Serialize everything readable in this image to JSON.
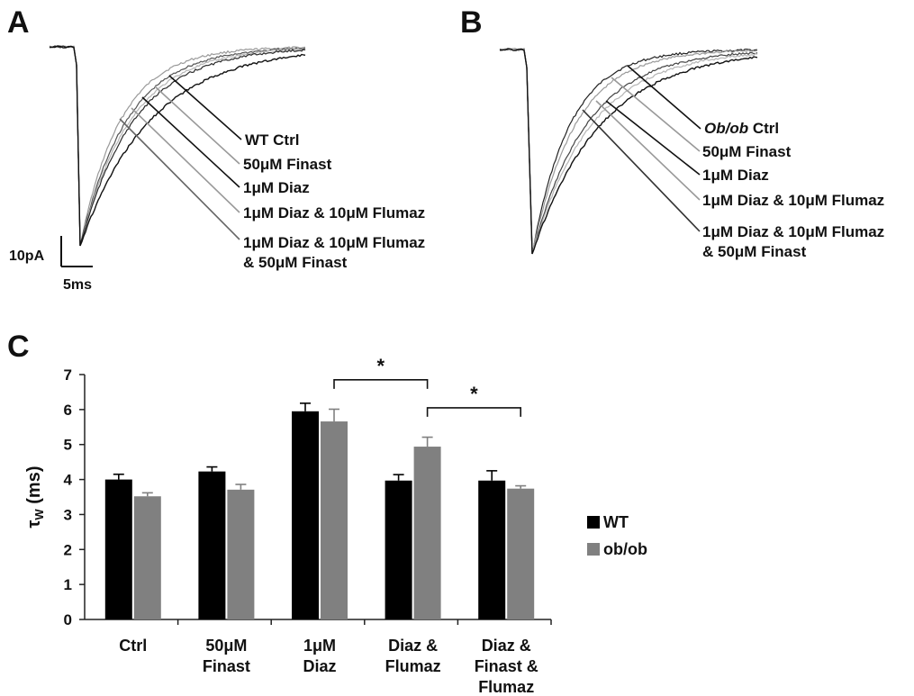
{
  "panels": {
    "A": {
      "letter": "A",
      "trace_labels": [
        "WT Ctrl",
        "50μM Finast",
        "1μM Diaz",
        "1μM Diaz & 10μM Flumaz",
        "1μM Diaz & 10μM Flumaz",
        "& 50μM Finast"
      ],
      "scale_bar": {
        "current": "10pA",
        "time": "5ms"
      }
    },
    "B": {
      "letter": "B",
      "trace_labels": [
        {
          "italic": "Ob/ob",
          "rest": " Ctrl"
        },
        {
          "italic": "",
          "rest": "50μM Finast"
        },
        {
          "italic": "",
          "rest": "1μM Diaz"
        },
        {
          "italic": "",
          "rest": "1μM Diaz & 10μM Flumaz"
        },
        {
          "italic": "",
          "rest": "1μM Diaz & 10μM Flumaz"
        },
        {
          "italic": "",
          "rest": "& 50μM Finast"
        }
      ]
    },
    "C": {
      "letter": "C"
    }
  },
  "chart_data": {
    "type": "bar",
    "ylabel_main": "τ",
    "ylabel_sub": "W",
    "ylabel_unit": " (ms)",
    "ylim": [
      0,
      7
    ],
    "yticks": [
      0,
      1,
      2,
      3,
      4,
      5,
      6,
      7
    ],
    "categories": [
      [
        "Ctrl"
      ],
      [
        "50μM",
        "Finast"
      ],
      [
        "1μM",
        "Diaz"
      ],
      [
        "Diaz &",
        "Flumaz"
      ],
      [
        "Diaz &",
        "Finast &",
        "Flumaz"
      ]
    ],
    "series": [
      {
        "name": "WT",
        "color": "#000000",
        "values": [
          4.0,
          4.23,
          5.95,
          3.97,
          3.97
        ],
        "errors": [
          0.15,
          0.13,
          0.23,
          0.17,
          0.28
        ]
      },
      {
        "name": "ob/ob",
        "color": "#808080",
        "values": [
          3.52,
          3.71,
          5.66,
          4.94,
          3.74
        ],
        "errors": [
          0.1,
          0.15,
          0.35,
          0.27,
          0.08
        ]
      }
    ],
    "significance": [
      {
        "from": [
          2,
          "ob/ob"
        ],
        "to": [
          3,
          "ob/ob"
        ],
        "label": "*"
      },
      {
        "from": [
          3,
          "ob/ob"
        ],
        "to": [
          4,
          "ob/ob"
        ],
        "label": "*"
      }
    ],
    "legend_position": "right",
    "grid": false
  }
}
